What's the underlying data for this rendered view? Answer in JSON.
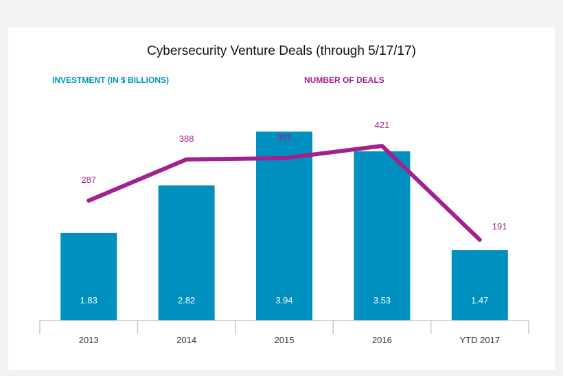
{
  "chart_data": {
    "type": "bar",
    "title": "Cybersecurity Venture Deals (through 5/17/17)",
    "categories": [
      "2013",
      "2014",
      "2015",
      "2016",
      "YTD 2017"
    ],
    "series": [
      {
        "name": "INVESTMENT (IN $ BILLIONS)",
        "type": "bar",
        "values": [
          1.83,
          2.82,
          3.94,
          3.53,
          1.47
        ],
        "labels": [
          "1.83",
          "2.82",
          "3.94",
          "3.53",
          "1.47"
        ],
        "color": "#0090bf"
      },
      {
        "name": "NUMBER OF DEALS",
        "type": "line",
        "values": [
          287,
          388,
          391,
          421,
          191
        ],
        "labels": [
          "287",
          "388",
          "391",
          "421",
          "191"
        ],
        "color": "#a3208f"
      }
    ],
    "grid": false,
    "legend_position": "top"
  }
}
